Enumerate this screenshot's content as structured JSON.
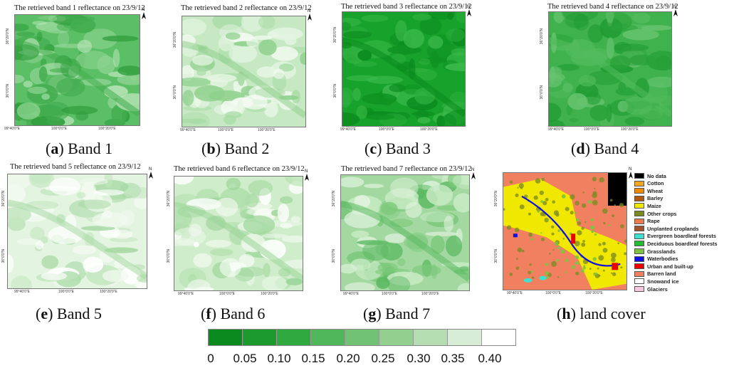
{
  "panels": [
    {
      "title": "The retrieved band 1 reflectance on 23/9/12",
      "letter": "a",
      "label": "Band 1",
      "lats": [
        "36°20'0\"N",
        "36°0'0\"N"
      ],
      "lons": [
        "99°40'0\"E",
        "100°0'0\"E",
        "100°20'0\"E"
      ],
      "base": "#5bbf66",
      "patches": [
        "#2f9e3c",
        "#8fd493",
        "#43ad4f",
        "#b6e3b5"
      ]
    },
    {
      "title": "The retrieved band 2 reflectance on 23/9/12",
      "letter": "b",
      "label": "Band 2",
      "lats": [
        "36°20'0\"N",
        "36°0'0\"N"
      ],
      "lons": [
        "99°40'0\"E",
        "100°0'0\"E",
        "100°20'0\"E"
      ],
      "base": "#c6e9c3",
      "patches": [
        "#a9dca6",
        "#e6f5e3",
        "#8fd08d",
        "#f5fbf3"
      ]
    },
    {
      "title": "The retrieved band 3 reflectance on 23/9/12",
      "letter": "c",
      "label": "Band 3",
      "lats": [
        "36°20'0\"N",
        "36°0'0\"N"
      ],
      "lons": [
        "99°40'0\"E",
        "100°0'0\"E",
        "100°20'0\"E"
      ],
      "base": "#17a32b",
      "patches": [
        "#0f9323",
        "#2eb03f",
        "#0a8a1e",
        "#3dba4c"
      ]
    },
    {
      "title": "The retrieved band 4 reflectance on 23/9/12",
      "letter": "d",
      "label": "Band 4",
      "lats": [
        "36°20'0\"N",
        "36°0'0\"N"
      ],
      "lons": [
        "99°40'0\"E",
        "100°0'0\"E",
        "100°20'0\"E"
      ],
      "base": "#3fb24d",
      "patches": [
        "#2aa23a",
        "#66c36f",
        "#52bb5d",
        "#1f9a31"
      ]
    },
    {
      "title": "The retrieved band 5 reflectance on 23/9/12",
      "letter": "e",
      "label": "Band 5",
      "lats": [
        "36°20'0\"N",
        "36°0'0\"N"
      ],
      "lons": [
        "99°40'0\"E",
        "100°0'0\"E",
        "100°20'0\"E"
      ],
      "base": "#e3f4e0",
      "patches": [
        "#c3e6bf",
        "#ffffff",
        "#a6d9a3",
        "#f3faf1"
      ]
    },
    {
      "title": "The retrieved band 6 reflectance on 23/9/12",
      "letter": "f",
      "label": "Band 6",
      "lats": [
        "36°20'0\"N",
        "36°0'0\"N"
      ],
      "lons": [
        "99°40'0\"E",
        "100°0'0\"E",
        "100°20'0\"E"
      ],
      "base": "#cfedcb",
      "patches": [
        "#b0dfac",
        "#f2faf0",
        "#9bd598",
        "#ffffff"
      ]
    },
    {
      "title": "The retrieved band 7 reflectance on 23/9/12",
      "letter": "g",
      "label": "Band 7",
      "lats": [
        "36°20'0\"N",
        "36°0'0\"N"
      ],
      "lons": [
        "99°40'0\"E",
        "100°0'0\"E",
        "100°20'0\"E"
      ],
      "base": "#a3d9a0",
      "patches": [
        "#7cc97b",
        "#c9ebc5",
        "#5bb962",
        "#e3f4e0"
      ]
    }
  ],
  "landcover": {
    "letter": "h",
    "label": "land cover",
    "lats": [
      "36°20'0\"N",
      "36°0'0\"N"
    ],
    "lons": [
      "99°40'0\"E",
      "100°0'0\"E",
      "100°20'0\"E"
    ],
    "legend": [
      {
        "name": "No data",
        "color": "#000000"
      },
      {
        "name": "Cotton",
        "color": "#f5a623"
      },
      {
        "name": "Wheat",
        "color": "#ee8a00"
      },
      {
        "name": "Barley",
        "color": "#b05a10"
      },
      {
        "name": "Maize",
        "color": "#f0e800"
      },
      {
        "name": "Other crops",
        "color": "#7a8a20"
      },
      {
        "name": "Rape",
        "color": "#f07a50"
      },
      {
        "name": "Unplanted croplands",
        "color": "#a0522d"
      },
      {
        "name": "Evergreen boardleaf forests",
        "color": "#40e0d0"
      },
      {
        "name": "Deciduous boardleaf forests",
        "color": "#22bb33"
      },
      {
        "name": "Grasslands",
        "color": "#7fc243"
      },
      {
        "name": "Waterbodies",
        "color": "#1010e0"
      },
      {
        "name": "Urban and built-up",
        "color": "#ee0000"
      },
      {
        "name": "Barren land",
        "color": "#f08060"
      },
      {
        "name": "Snowand ice",
        "color": "#ffffff"
      },
      {
        "name": "Glaciers",
        "color": "#f8c8e0"
      }
    ]
  },
  "colorbar": {
    "colors": [
      "#0a8a1e",
      "#1c9a2e",
      "#2faa40",
      "#4fb65a",
      "#72c275",
      "#93d090",
      "#b5ddb2",
      "#d8edd6",
      "#ffffff"
    ],
    "ticks": [
      "0",
      "0.05",
      "0.10",
      "0.15",
      "0.20",
      "0.25",
      "0.30",
      "0.35",
      "0.40"
    ]
  }
}
